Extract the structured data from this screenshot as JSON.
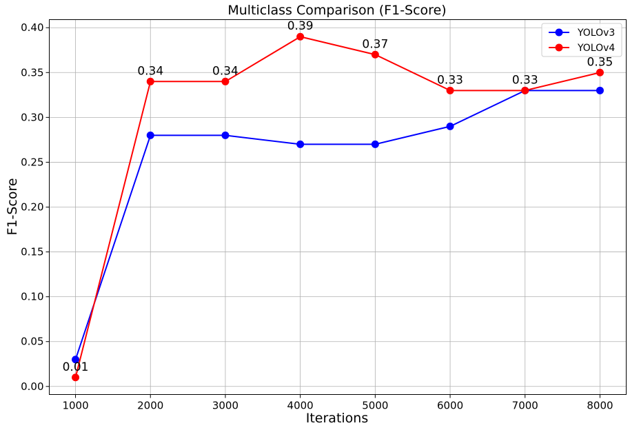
{
  "chart_data": {
    "type": "line",
    "title": "Multiclass Comparison (F1-Score)",
    "xlabel": "Iterations",
    "ylabel": "F1-Score",
    "x": [
      1000,
      2000,
      3000,
      4000,
      5000,
      6000,
      7000,
      8000
    ],
    "xticks": [
      "1000",
      "2000",
      "3000",
      "4000",
      "5000",
      "6000",
      "7000",
      "8000"
    ],
    "yticks": [
      "0.00",
      "0.05",
      "0.10",
      "0.15",
      "0.20",
      "0.25",
      "0.30",
      "0.35",
      "0.40"
    ],
    "xlim": [
      650,
      8350
    ],
    "ylim": [
      -0.009,
      0.409
    ],
    "grid": true,
    "legend_position": "top-right",
    "series": [
      {
        "name": "YOLOv3",
        "color": "#0000ff",
        "values": [
          0.03,
          0.28,
          0.28,
          0.27,
          0.27,
          0.29,
          0.33,
          0.33
        ]
      },
      {
        "name": "YOLOv4",
        "color": "#ff0000",
        "values": [
          0.01,
          0.34,
          0.34,
          0.39,
          0.37,
          0.33,
          0.33,
          0.35
        ]
      }
    ],
    "annotations": [
      "0.01",
      "0.34",
      "0.34",
      "0.39",
      "0.37",
      "0.33",
      "0.33",
      "0.35"
    ]
  }
}
